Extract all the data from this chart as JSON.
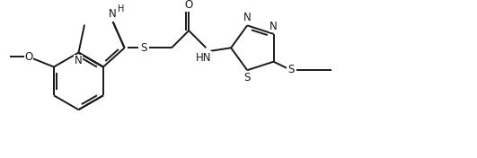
{
  "background_color": "#ffffff",
  "figsize": [
    5.31,
    1.76
  ],
  "dpi": 100,
  "line_color": "#1a1a1a",
  "line_width": 1.4,
  "font_size": 8.5,
  "xlim": [
    0,
    10.5
  ],
  "ylim": [
    0,
    3.3
  ]
}
